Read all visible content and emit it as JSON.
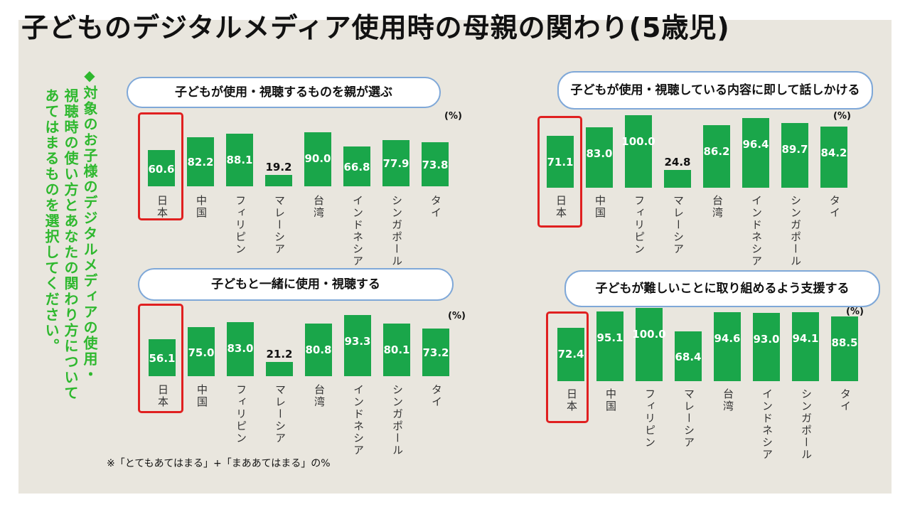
{
  "title": "子どものデジタルメディア使用時の母親の関わり(5歳児)",
  "side_note": "◆対象のお子様のデジタルメディアの使用・視聴時の使い方とあなたの関わり方について あてはまるものを選択してください。",
  "footnote": "※「とてもあてはまる」+「まああてはまる」の%",
  "unit": "(%)",
  "colors": {
    "bar": "#1aa64a",
    "highlight": "#e02020",
    "panel": "#e9e6de"
  },
  "chart_data": [
    {
      "type": "bar",
      "title": "子どもが使用・視聴するものを親が選ぶ",
      "categories": [
        "日本",
        "中国",
        "フィリピン",
        "マレーシア",
        "台湾",
        "インドネシア",
        "シンガポール",
        "タイ"
      ],
      "values": [
        60.6,
        82.2,
        88.1,
        19.2,
        90.0,
        66.8,
        77.9,
        73.8
      ],
      "ylim": [
        0,
        100
      ],
      "highlight": "日本"
    },
    {
      "type": "bar",
      "title": "子どもが使用・視聴している内容に即して話しかける",
      "categories": [
        "日本",
        "中国",
        "フィリピン",
        "マレーシア",
        "台湾",
        "インドネシア",
        "シンガポール",
        "タイ"
      ],
      "values": [
        71.1,
        83.0,
        100.0,
        24.8,
        86.2,
        96.4,
        89.7,
        84.2
      ],
      "ylim": [
        0,
        100
      ],
      "highlight": "日本"
    },
    {
      "type": "bar",
      "title": "子どもと一緒に使用・視聴する",
      "categories": [
        "日本",
        "中国",
        "フィリピン",
        "マレーシア",
        "台湾",
        "インドネシア",
        "シンガポール",
        "タイ"
      ],
      "values": [
        56.1,
        75.0,
        83.0,
        21.2,
        80.8,
        93.3,
        80.1,
        73.2
      ],
      "ylim": [
        0,
        100
      ],
      "highlight": "日本"
    },
    {
      "type": "bar",
      "title": "子どもが難しいことに取り組めるよう支援する",
      "categories": [
        "日本",
        "中国",
        "フィリピン",
        "マレーシア",
        "台湾",
        "インドネシア",
        "シンガポール",
        "タイ"
      ],
      "values": [
        72.4,
        95.1,
        100.0,
        68.4,
        94.6,
        93.0,
        94.1,
        88.5
      ],
      "ylim": [
        0,
        100
      ],
      "highlight": "日本"
    }
  ]
}
